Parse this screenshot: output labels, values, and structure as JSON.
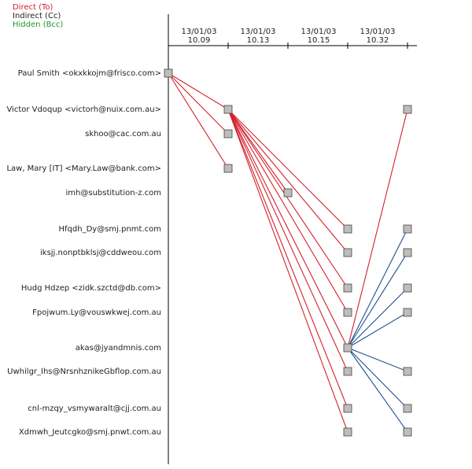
{
  "legend": [
    "Direct (To)",
    "Indirect (Cc)",
    "Hidden (Bcc)"
  ],
  "columns": [
    {
      "date": "13/01/03",
      "time": "10.09"
    },
    {
      "date": "13/01/03",
      "time": "10.13"
    },
    {
      "date": "13/01/03",
      "time": "10.15"
    },
    {
      "date": "13/01/03",
      "time": "10.32"
    }
  ],
  "rows": [
    "Paul Smith <okxkkojm@frisco.com>",
    "Victor Vdoqup <victorh@nuix.com.au>",
    "skhoo@cac.com.au",
    "Law, Mary [IT] <Mary.Law@bank.com>",
    "imh@substitution-z.com",
    "Hfqdh_Dy@smj.pnmt.com",
    "iksjj.nonptbklsj@cddweou.com",
    "Hudg Hdzep <zidk.szctd@db.com>",
    "Fpojwum.Ly@vouswkwej.com.au",
    "akas@jyandmnis.com",
    "Uwhilgr_Ihs@NrsnhznikeGbflop.com.au",
    "cnl-mzqy_vsmywaralt@cjj.com.au",
    "Xdmwh_Jeutcgko@smj.pnwt.com.au"
  ]
}
